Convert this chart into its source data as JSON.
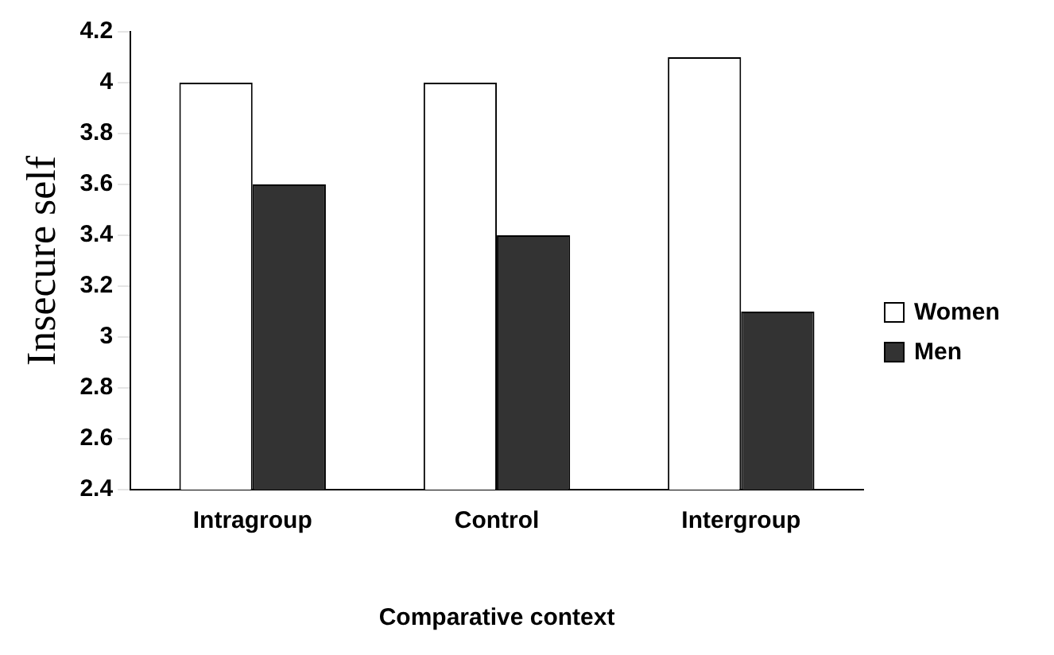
{
  "chart_data": {
    "type": "bar",
    "xlabel": "Comparative context",
    "ylabel": "Insecure self",
    "categories": [
      "Intragroup",
      "Control",
      "Intergroup"
    ],
    "series": [
      {
        "name": "Women",
        "color": "#ffffff",
        "values": [
          4.0,
          4.0,
          4.1
        ]
      },
      {
        "name": "Men",
        "color": "#333333",
        "values": [
          3.6,
          3.4,
          3.1
        ]
      }
    ],
    "ylim": [
      2.4,
      4.2
    ],
    "yticks": [
      2.4,
      2.6,
      2.8,
      3,
      3.2,
      3.4,
      3.6,
      3.8,
      4,
      4.2
    ],
    "grid": false,
    "legend": "right"
  }
}
